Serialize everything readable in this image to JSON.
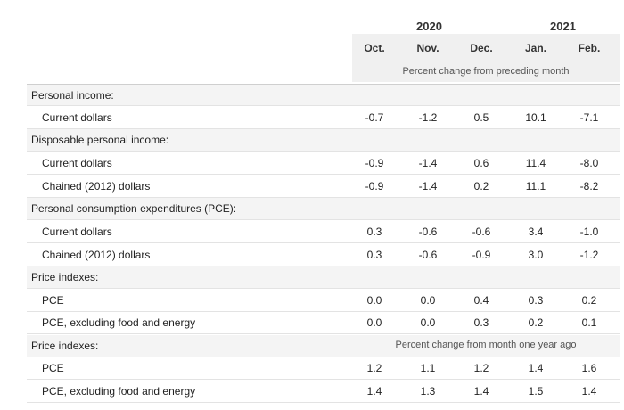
{
  "header": {
    "years": [
      "2020",
      "2021"
    ],
    "months": [
      "Oct.",
      "Nov.",
      "Dec.",
      "Jan.",
      "Feb."
    ],
    "subheader_monthly": "Percent change from preceding month",
    "subheader_yearly": "Percent change from month one year ago"
  },
  "rows": [
    {
      "label": "Personal income:",
      "values": []
    },
    {
      "label": "Current dollars",
      "values": [
        "-0.7",
        "-1.2",
        "0.5",
        "10.1",
        "-7.1"
      ]
    },
    {
      "label": "Disposable personal income:",
      "values": []
    },
    {
      "label": "Current dollars",
      "values": [
        "-0.9",
        "-1.4",
        "0.6",
        "11.4",
        "-8.0"
      ]
    },
    {
      "label": "Chained (2012) dollars",
      "values": [
        "-0.9",
        "-1.4",
        "0.2",
        "11.1",
        "-8.2"
      ]
    },
    {
      "label": "Personal consumption expenditures (PCE):",
      "values": []
    },
    {
      "label": "Current dollars",
      "values": [
        "0.3",
        "-0.6",
        "-0.6",
        "3.4",
        "-1.0"
      ]
    },
    {
      "label": "Chained (2012) dollars",
      "values": [
        "0.3",
        "-0.6",
        "-0.9",
        "3.0",
        "-1.2"
      ]
    },
    {
      "label": "Price indexes:",
      "values": []
    },
    {
      "label": "PCE",
      "values": [
        "0.0",
        "0.0",
        "0.4",
        "0.3",
        "0.2"
      ]
    },
    {
      "label": "PCE, excluding food and energy",
      "values": [
        "0.0",
        "0.0",
        "0.3",
        "0.2",
        "0.1"
      ]
    },
    {
      "label": "Price indexes:",
      "values": []
    },
    {
      "label": "PCE",
      "values": [
        "1.2",
        "1.1",
        "1.2",
        "1.4",
        "1.6"
      ]
    },
    {
      "label": "PCE, excluding food and energy",
      "values": [
        "1.4",
        "1.3",
        "1.4",
        "1.5",
        "1.4"
      ]
    }
  ]
}
